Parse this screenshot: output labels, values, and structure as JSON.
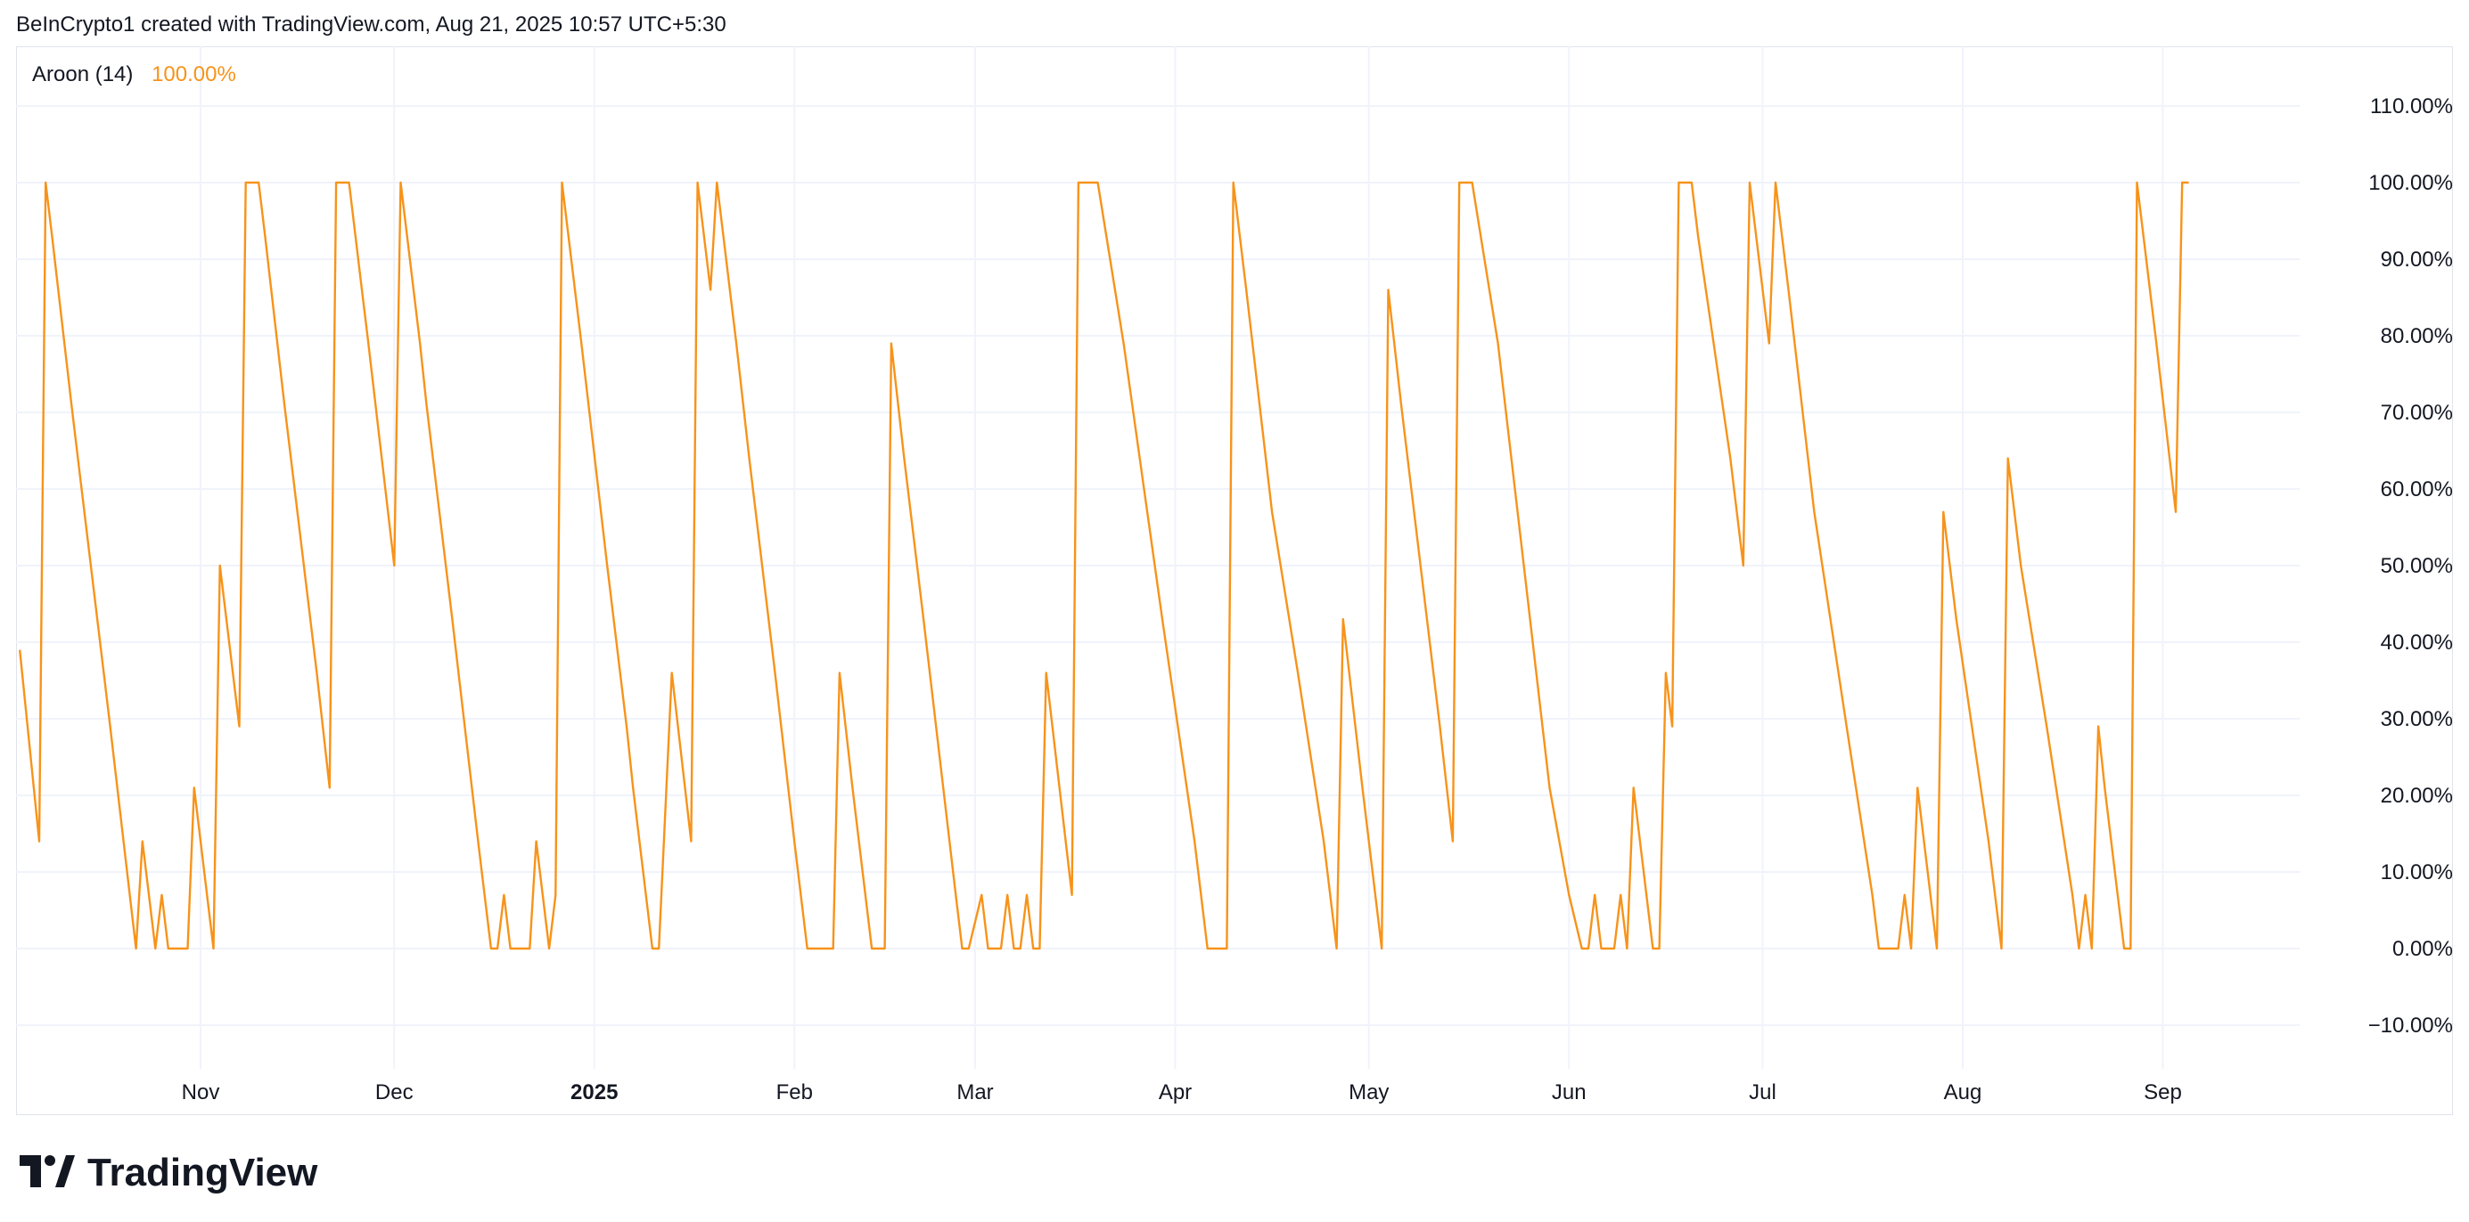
{
  "header": {
    "attribution": "BeInCrypto1 created with TradingView.com, Aug 21, 2025 10:57 UTC+5:30"
  },
  "legend": {
    "name": "Aroon (14)",
    "value": "100.00%"
  },
  "footer": {
    "logo_text": "TradingView",
    "icon": "tradingview-logo-icon"
  },
  "colors": {
    "series": "#f7931a",
    "grid": "#f0f3fa",
    "border": "#e0e3eb",
    "text": "#131722"
  },
  "chart_data": {
    "type": "line",
    "title": "",
    "xlabel": "",
    "ylabel": "",
    "ylim": [
      -14,
      116
    ],
    "y_ticks": [
      -10,
      0,
      10,
      20,
      30,
      40,
      50,
      60,
      70,
      80,
      90,
      100,
      110
    ],
    "y_tick_labels": [
      "−10.00%",
      "0.00%",
      "10.00%",
      "20.00%",
      "30.00%",
      "40.00%",
      "50.00%",
      "60.00%",
      "70.00%",
      "80.00%",
      "90.00%",
      "100.00%",
      "110.00%"
    ],
    "x_range": [
      "2025-10-05",
      "2025-09-15"
    ],
    "x_ticks": [
      {
        "label": "Nov",
        "date": "2024-11-01",
        "bold": false
      },
      {
        "label": "Dec",
        "date": "2024-12-01",
        "bold": false
      },
      {
        "label": "2025",
        "date": "2025-01-01",
        "bold": true
      },
      {
        "label": "Feb",
        "date": "2025-02-01",
        "bold": false
      },
      {
        "label": "Mar",
        "date": "2025-03-01",
        "bold": false
      },
      {
        "label": "Apr",
        "date": "2025-04-01",
        "bold": false
      },
      {
        "label": "May",
        "date": "2025-05-01",
        "bold": false
      },
      {
        "label": "Jun",
        "date": "2025-06-01",
        "bold": false
      },
      {
        "label": "Jul",
        "date": "2025-07-01",
        "bold": false
      },
      {
        "label": "Aug",
        "date": "2025-08-01",
        "bold": false
      },
      {
        "label": "Sep",
        "date": "2025-09-01",
        "bold": false
      }
    ],
    "grid": true,
    "series": [
      {
        "name": "Aroon (14)",
        "points": [
          [
            "2024-10-04",
            39
          ],
          [
            "2024-10-07",
            14
          ],
          [
            "2024-10-08",
            100
          ],
          [
            "2024-10-09",
            93
          ],
          [
            "2024-10-12",
            71
          ],
          [
            "2024-10-13",
            64
          ],
          [
            "2024-10-17",
            36
          ],
          [
            "2024-10-18",
            29
          ],
          [
            "2024-10-22",
            0
          ],
          [
            "2024-10-23",
            14
          ],
          [
            "2024-10-25",
            0
          ],
          [
            "2024-10-26",
            7
          ],
          [
            "2024-10-27",
            0
          ],
          [
            "2024-10-30",
            0
          ],
          [
            "2024-10-31",
            21
          ],
          [
            "2024-11-03",
            0
          ],
          [
            "2024-11-04",
            50
          ],
          [
            "2024-11-07",
            29
          ],
          [
            "2024-11-08",
            100
          ],
          [
            "2024-11-10",
            100
          ],
          [
            "2024-11-11",
            93
          ],
          [
            "2024-11-14",
            71
          ],
          [
            "2024-11-15",
            64
          ],
          [
            "2024-11-19",
            36
          ],
          [
            "2024-11-21",
            21
          ],
          [
            "2024-11-22",
            100
          ],
          [
            "2024-11-24",
            100
          ],
          [
            "2024-11-26",
            86
          ],
          [
            "2024-11-27",
            79
          ],
          [
            "2024-12-01",
            50
          ],
          [
            "2024-12-02",
            100
          ],
          [
            "2024-12-05",
            79
          ],
          [
            "2024-12-06",
            71
          ],
          [
            "2024-12-10",
            43
          ],
          [
            "2024-12-14",
            14
          ],
          [
            "2024-12-16",
            0
          ],
          [
            "2024-12-17",
            0
          ],
          [
            "2024-12-18",
            7
          ],
          [
            "2024-12-19",
            0
          ],
          [
            "2024-12-22",
            0
          ],
          [
            "2024-12-23",
            14
          ],
          [
            "2024-12-25",
            0
          ],
          [
            "2024-12-26",
            7
          ],
          [
            "2024-12-27",
            100
          ],
          [
            "2024-12-30",
            79
          ],
          [
            "2025-01-03",
            50
          ],
          [
            "2025-01-06",
            29
          ],
          [
            "2025-01-07",
            21
          ],
          [
            "2025-01-10",
            0
          ],
          [
            "2025-01-11",
            0
          ],
          [
            "2025-01-13",
            36
          ],
          [
            "2025-01-16",
            14
          ],
          [
            "2025-01-17",
            100
          ],
          [
            "2025-01-19",
            86
          ],
          [
            "2025-01-20",
            100
          ],
          [
            "2025-01-23",
            79
          ],
          [
            "2025-01-25",
            64
          ],
          [
            "2025-01-29",
            36
          ],
          [
            "2025-02-01",
            14
          ],
          [
            "2025-02-03",
            0
          ],
          [
            "2025-02-07",
            0
          ],
          [
            "2025-02-08",
            36
          ],
          [
            "2025-02-10",
            21
          ],
          [
            "2025-02-13",
            0
          ],
          [
            "2025-02-15",
            0
          ],
          [
            "2025-02-16",
            79
          ],
          [
            "2025-02-18",
            64
          ],
          [
            "2025-02-21",
            43
          ],
          [
            "2025-02-26",
            7
          ],
          [
            "2025-02-27",
            0
          ],
          [
            "2025-02-28",
            0
          ],
          [
            "2025-03-02",
            7
          ],
          [
            "2025-03-03",
            0
          ],
          [
            "2025-03-05",
            0
          ],
          [
            "2025-03-06",
            7
          ],
          [
            "2025-03-07",
            0
          ],
          [
            "2025-03-08",
            0
          ],
          [
            "2025-03-09",
            7
          ],
          [
            "2025-03-10",
            0
          ],
          [
            "2025-03-11",
            0
          ],
          [
            "2025-03-12",
            36
          ],
          [
            "2025-03-16",
            7
          ],
          [
            "2025-03-17",
            100
          ],
          [
            "2025-03-19",
            100
          ],
          [
            "2025-03-20",
            100
          ],
          [
            "2025-03-24",
            79
          ],
          [
            "2025-03-30",
            43
          ],
          [
            "2025-04-04",
            14
          ],
          [
            "2025-04-06",
            0
          ],
          [
            "2025-04-09",
            0
          ],
          [
            "2025-04-10",
            100
          ],
          [
            "2025-04-12",
            86
          ],
          [
            "2025-04-16",
            57
          ],
          [
            "2025-04-20",
            36
          ],
          [
            "2025-04-24",
            14
          ],
          [
            "2025-04-26",
            0
          ],
          [
            "2025-04-27",
            43
          ],
          [
            "2025-04-30",
            21
          ],
          [
            "2025-05-03",
            0
          ],
          [
            "2025-05-04",
            86
          ],
          [
            "2025-05-06",
            71
          ],
          [
            "2025-05-09",
            50
          ],
          [
            "2025-05-12",
            29
          ],
          [
            "2025-05-14",
            14
          ],
          [
            "2025-05-15",
            100
          ],
          [
            "2025-05-17",
            100
          ],
          [
            "2025-05-21",
            79
          ],
          [
            "2025-05-25",
            50
          ],
          [
            "2025-05-29",
            21
          ],
          [
            "2025-06-01",
            7
          ],
          [
            "2025-06-03",
            0
          ],
          [
            "2025-06-04",
            0
          ],
          [
            "2025-06-05",
            7
          ],
          [
            "2025-06-06",
            0
          ],
          [
            "2025-06-08",
            0
          ],
          [
            "2025-06-09",
            7
          ],
          [
            "2025-06-10",
            0
          ],
          [
            "2025-06-11",
            21
          ],
          [
            "2025-06-14",
            0
          ],
          [
            "2025-06-15",
            0
          ],
          [
            "2025-06-16",
            36
          ],
          [
            "2025-06-17",
            29
          ],
          [
            "2025-06-18",
            100
          ],
          [
            "2025-06-20",
            100
          ],
          [
            "2025-06-21",
            93
          ],
          [
            "2025-06-26",
            64
          ],
          [
            "2025-06-28",
            50
          ],
          [
            "2025-06-29",
            100
          ],
          [
            "2025-07-02",
            79
          ],
          [
            "2025-07-03",
            100
          ],
          [
            "2025-07-05",
            86
          ],
          [
            "2025-07-09",
            57
          ],
          [
            "2025-07-14",
            29
          ],
          [
            "2025-07-18",
            7
          ],
          [
            "2025-07-19",
            0
          ],
          [
            "2025-07-22",
            0
          ],
          [
            "2025-07-23",
            7
          ],
          [
            "2025-07-24",
            0
          ],
          [
            "2025-07-25",
            21
          ],
          [
            "2025-07-28",
            0
          ],
          [
            "2025-07-29",
            57
          ],
          [
            "2025-07-31",
            43
          ],
          [
            "2025-08-05",
            14
          ],
          [
            "2025-08-07",
            0
          ],
          [
            "2025-08-08",
            64
          ],
          [
            "2025-08-10",
            50
          ],
          [
            "2025-08-14",
            29
          ],
          [
            "2025-08-18",
            7
          ],
          [
            "2025-08-19",
            0
          ],
          [
            "2025-08-20",
            7
          ],
          [
            "2025-08-21",
            0
          ],
          [
            "2025-08-22",
            29
          ],
          [
            "2025-08-23",
            21
          ],
          [
            "2025-08-26",
            0
          ],
          [
            "2025-08-27",
            0
          ],
          [
            "2025-08-28",
            100
          ],
          [
            "2025-08-31",
            79
          ],
          [
            "2025-09-03",
            57
          ],
          [
            "2025-09-04",
            100
          ],
          [
            "2025-09-05",
            100
          ]
        ]
      }
    ]
  }
}
